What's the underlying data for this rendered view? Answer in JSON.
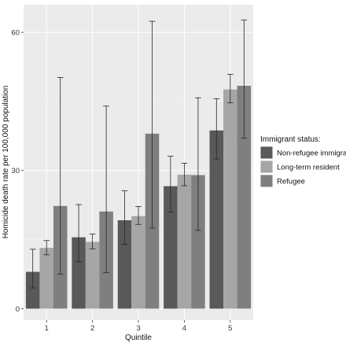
{
  "chart_data": {
    "type": "bar",
    "title": "",
    "xlabel": "Quintile",
    "ylabel": "Homicide death rate per 100,000 population",
    "categories": [
      "1",
      "2",
      "3",
      "4",
      "5"
    ],
    "ylim": [
      -2.5,
      66
    ],
    "yticks": [
      0,
      30,
      60
    ],
    "grid": true,
    "legend": {
      "title": "Immigrant status:",
      "position": "right"
    },
    "series": [
      {
        "name": "Non-refugee immigrant",
        "color": "#595959",
        "values": [
          8,
          15.5,
          19.2,
          26.6,
          38.7
        ],
        "ci_low": [
          4.5,
          10.2,
          14.0,
          21.0,
          32.5
        ],
        "ci_high": [
          12.9,
          22.6,
          25.6,
          33.1,
          45.6
        ]
      },
      {
        "name": "Long-term resident",
        "color": "#a6a6a6",
        "values": [
          13.2,
          14.5,
          20.1,
          29.1,
          47.6
        ],
        "ci_low": [
          11.7,
          13.0,
          18.3,
          26.7,
          44.7
        ],
        "ci_high": [
          14.8,
          16.2,
          22.2,
          31.6,
          50.9
        ]
      },
      {
        "name": "Refugee",
        "color": "#7f7f7f",
        "values": [
          22.3,
          21.1,
          38.0,
          29.0,
          48.4
        ],
        "ci_low": [
          7.5,
          7.8,
          17.5,
          17.0,
          37.0
        ],
        "ci_high": [
          50.2,
          44.0,
          62.4,
          45.8,
          62.7
        ]
      }
    ]
  }
}
